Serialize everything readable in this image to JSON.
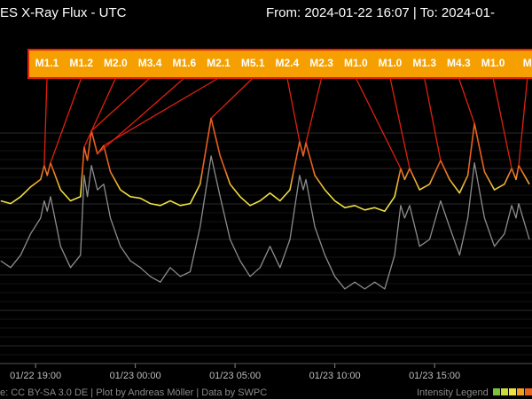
{
  "chart_data": {
    "type": "line",
    "title": "ES X-Ray Flux - UTC",
    "subtitle": "From: 2024-01-22 16:07  |  To: 2024-01-",
    "footer": "e: CC BY-SA 3.0 DE | Plot by Andreas Möller | Data by SWPC",
    "legend_title": "Intensity Legend",
    "log_scale": true,
    "ylim": [
      1e-07,
      0.001
    ],
    "xlim": [
      "01/22 17:13",
      "01/23 19:53"
    ],
    "xticks": [
      "01/22 19:00",
      "01/23 00:00",
      "01/23 05:00",
      "01/23 10:00",
      "01/23 15:00"
    ],
    "x": [
      "01/22 17:15",
      "01/22 17:45",
      "01/22 18:15",
      "01/22 18:45",
      "01/22 19:15",
      "01/22 19:26",
      "01/22 19:35",
      "01/22 19:45",
      "01/22 20:15",
      "01/22 20:45",
      "01/22 21:15",
      "01/22 21:26",
      "01/22 21:36",
      "01/22 21:48",
      "01/22 22:06",
      "01/22 22:25",
      "01/22 22:45",
      "01/22 23:15",
      "01/22 23:45",
      "01/23 00:15",
      "01/23 00:45",
      "01/23 01:15",
      "01/23 01:45",
      "01/23 02:15",
      "01/23 02:45",
      "01/23 03:15",
      "01/23 03:48",
      "01/23 04:15",
      "01/23 04:45",
      "01/23 05:15",
      "01/23 05:45",
      "01/23 06:15",
      "01/23 06:45",
      "01/23 07:15",
      "01/23 07:45",
      "01/23 08:14",
      "01/23 08:25",
      "01/23 08:33",
      "01/23 09:00",
      "01/23 09:30",
      "01/23 10:00",
      "01/23 10:30",
      "01/23 11:00",
      "01/23 11:30",
      "01/23 12:00",
      "01/23 12:30",
      "01/23 13:00",
      "01/23 13:18",
      "01/23 13:30",
      "01/23 13:45",
      "01/23 14:15",
      "01/23 14:45",
      "01/23 15:18",
      "01/23 15:45",
      "01/23 16:15",
      "01/23 16:40",
      "01/23 17:00",
      "01/23 17:30",
      "01/23 18:00",
      "01/23 18:30",
      "01/23 18:52",
      "01/23 19:05",
      "01/23 19:13",
      "01/23 19:45"
    ],
    "series": [
      {
        "color": "#f0e040",
        "values": [
          3.5e-06,
          3.2e-06,
          4e-06,
          5.5e-06,
          7e-06,
          1.1e-05,
          8e-06,
          1.2e-05,
          5e-06,
          3.5e-06,
          4e-06,
          2e-05,
          1.3e-05,
          3.4e-05,
          1.6e-05,
          2.1e-05,
          9e-06,
          5e-06,
          4e-06,
          3.8e-06,
          3.2e-06,
          3e-06,
          3.5e-06,
          3e-06,
          3.2e-06,
          6e-06,
          5.1e-05,
          1.5e-05,
          6e-06,
          4e-06,
          3e-06,
          3.5e-06,
          4.5e-06,
          3.5e-06,
          5e-06,
          2.4e-05,
          1.5e-05,
          2.3e-05,
          8e-06,
          5e-06,
          3.5e-06,
          2.8e-06,
          3e-06,
          2.6e-06,
          2.8e-06,
          2.5e-06,
          4e-06,
          1e-05,
          7e-06,
          1e-05,
          5e-06,
          6e-06,
          1.3e-05,
          7e-06,
          4.5e-06,
          8e-06,
          4.3e-05,
          9e-06,
          5e-06,
          6e-06,
          1e-05,
          7e-06,
          1.1e-05,
          6e-06
        ]
      },
      {
        "color": "#8c8c8c",
        "values": [
          5e-07,
          4e-07,
          6e-07,
          1.2e-06,
          2e-06,
          3.5e-06,
          2.5e-06,
          4e-06,
          8e-07,
          4e-07,
          6e-07,
          8e-06,
          4e-06,
          1.1e-05,
          5e-06,
          6e-06,
          2e-06,
          8e-07,
          5e-07,
          4e-07,
          3e-07,
          2.5e-07,
          4e-07,
          3e-07,
          3.5e-07,
          1.5e-06,
          1.5e-05,
          4e-06,
          1e-06,
          5e-07,
          3e-07,
          4e-07,
          8e-07,
          4e-07,
          1e-06,
          8e-06,
          5e-06,
          7e-06,
          1.5e-06,
          6e-07,
          3e-07,
          2e-07,
          2.5e-07,
          2e-07,
          2.5e-07,
          2e-07,
          6e-07,
          3e-06,
          2e-06,
          3e-06,
          8e-07,
          1e-06,
          3.5e-06,
          1.5e-06,
          6e-07,
          2e-06,
          1.2e-05,
          2e-06,
          8e-07,
          1.2e-06,
          3e-06,
          2e-06,
          3.2e-06,
          1e-06
        ]
      }
    ],
    "annotation_color": "#e8601c",
    "annotations": [
      {
        "label": "M1.1",
        "x": "01/22 19:26",
        "value": 1.1e-05
      },
      {
        "label": "M1.2",
        "x": "01/22 19:45",
        "value": 1.2e-05
      },
      {
        "label": "M2.0",
        "x": "01/22 21:26",
        "value": 2e-05
      },
      {
        "label": "M3.4",
        "x": "01/22 21:48",
        "value": 3.4e-05
      },
      {
        "label": "M1.6",
        "x": "01/22 22:06",
        "value": 1.6e-05
      },
      {
        "label": "M2.1",
        "x": "01/22 22:25",
        "value": 2.1e-05
      },
      {
        "label": "M5.1",
        "x": "01/23 03:48",
        "value": 5.1e-05
      },
      {
        "label": "M2.4",
        "x": "01/23 08:14",
        "value": 2.4e-05
      },
      {
        "label": "M2.3",
        "x": "01/23 08:33",
        "value": 2.3e-05
      },
      {
        "label": "M1.0",
        "x": "01/23 13:18",
        "value": 1e-05
      },
      {
        "label": "M1.0",
        "x": "01/23 13:45",
        "value": 1e-05
      },
      {
        "label": "M1.3",
        "x": "01/23 15:18",
        "value": 1.3e-05
      },
      {
        "label": "M4.3",
        "x": "01/23 17:00",
        "value": 4.3e-05
      },
      {
        "label": "M1.0",
        "x": "01/23 18:52",
        "value": 1e-05
      },
      {
        "label": "M",
        "x": "01/23 19:13",
        "value": 1.1e-05
      }
    ]
  }
}
